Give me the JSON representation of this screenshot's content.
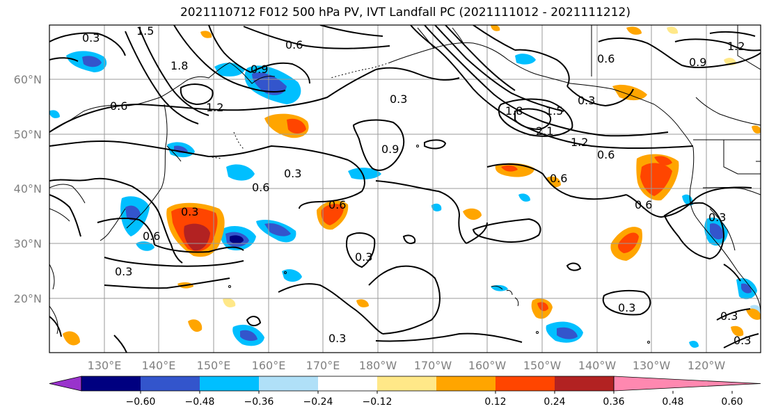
{
  "title": "2021110712 F012 500 hPa PV, IVT Landfall PC (2021111012 - 2021111212)",
  "lat_labels": [
    "60°N",
    "50°N",
    "40°N",
    "30°N",
    "20°N"
  ],
  "lon_labels": [
    "130°E",
    "140°E",
    "150°E",
    "160°E",
    "170°E",
    "180°W",
    "170°W",
    "160°W",
    "150°W",
    "140°W",
    "130°W",
    "120°W"
  ],
  "colorbar": {
    "colors": [
      "#9933cc",
      "#000080",
      "#3355cc",
      "#00bfff",
      "#b0e0f8",
      "#ffffff",
      "#ffe888",
      "#ffa500",
      "#ff4500",
      "#b22222",
      "#ff88b0"
    ],
    "ticks": [
      "−0.60",
      "−0.48",
      "−0.36",
      "−0.24",
      "−0.12",
      "0.12",
      "0.24",
      "0.36",
      "0.48",
      "0.60"
    ]
  },
  "contour_labels": [
    "0.3",
    "0.3",
    "0.3",
    "0.3",
    "0.3",
    "0.3",
    "0.3",
    "0.3",
    "0.3",
    "0.3",
    "0.3",
    "0.3",
    "0.6",
    "0.6",
    "0.6",
    "0.6",
    "0.6",
    "0.6",
    "0.6",
    "0.6",
    "0.6",
    "0.9",
    "0.9",
    "0.9",
    "1.2",
    "1.2",
    "1.2",
    "1.5",
    "1.5",
    "1.8",
    "1.8",
    "2.1"
  ]
}
